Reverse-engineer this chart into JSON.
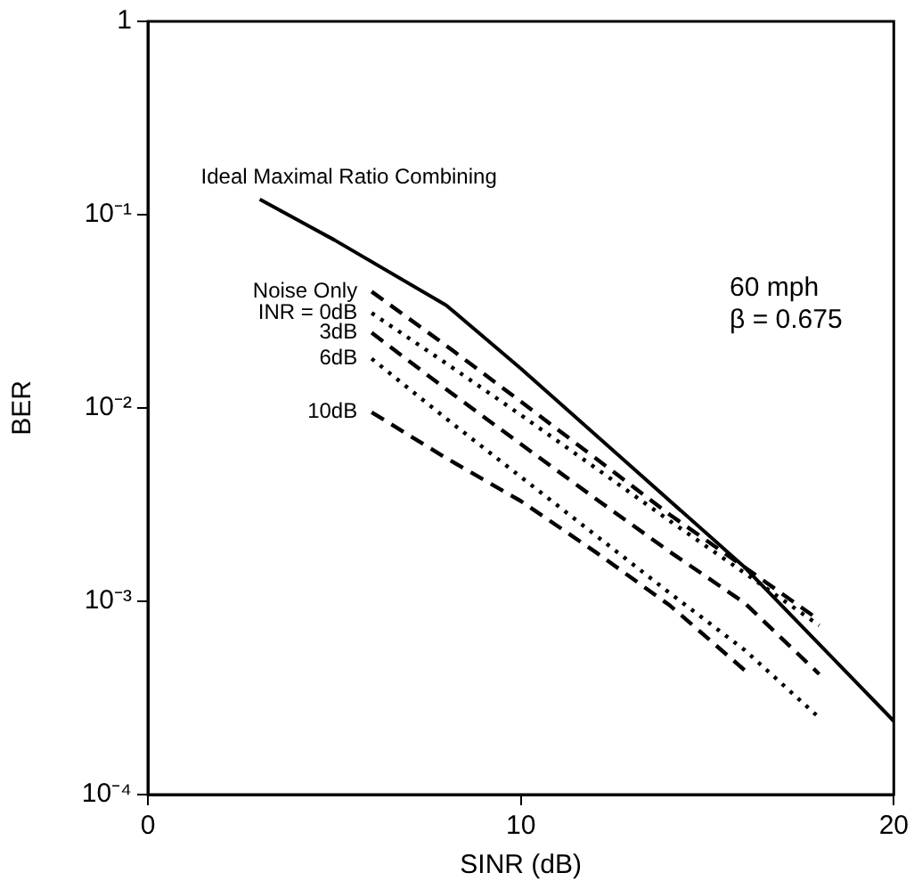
{
  "chart_data": {
    "type": "line",
    "xlabel": "SINR (dB)",
    "ylabel": "BER",
    "log": "y",
    "grid": false,
    "legend": false,
    "marker": "none",
    "xlim": [
      0,
      20
    ],
    "xticks": [
      0,
      10,
      20
    ],
    "ylim": [
      0.0001,
      1
    ],
    "yticks": [
      {
        "value": 0.0001,
        "label": "10⁻⁴"
      },
      {
        "value": 0.001,
        "label": "10⁻³"
      },
      {
        "value": 0.01,
        "label": "10⁻²"
      },
      {
        "value": 0.1,
        "label": "10⁻¹"
      },
      1
    ],
    "annotations": [
      "60 mph",
      "β = 0.675"
    ],
    "series": [
      {
        "name": "Ideal Maximal Ratio Combining",
        "color": "#000000",
        "line_style": "solid",
        "x": [
          3,
          5,
          8,
          10,
          13,
          16,
          20
        ],
        "values": [
          0.12,
          0.074,
          0.034,
          0.016,
          0.0049,
          0.0015,
          0.00024
        ]
      },
      {
        "name": "Noise Only",
        "color": "#000000",
        "line_style": "dashed",
        "x": [
          6,
          8,
          10,
          12,
          14,
          16,
          18
        ],
        "values": [
          0.04,
          0.021,
          0.0108,
          0.0055,
          0.0028,
          0.0015,
          0.0008
        ]
      },
      {
        "name": "INR = 0dB",
        "color": "#000000",
        "line_style": "dotted",
        "x": [
          6,
          8,
          10,
          12,
          14,
          16,
          18
        ],
        "values": [
          0.031,
          0.017,
          0.0092,
          0.0049,
          0.0026,
          0.0014,
          0.00075
        ]
      },
      {
        "name": "3dB",
        "color": "#000000",
        "line_style": "dashed",
        "x": [
          6,
          8,
          10,
          12,
          14,
          16,
          18
        ],
        "values": [
          0.0245,
          0.0125,
          0.0065,
          0.0034,
          0.0018,
          0.00098,
          0.00042
        ]
      },
      {
        "name": "6dB",
        "color": "#000000",
        "line_style": "dotted",
        "x": [
          6,
          8,
          10,
          12,
          14,
          16,
          18
        ],
        "values": [
          0.018,
          0.0088,
          0.0044,
          0.0022,
          0.0011,
          0.00056,
          0.00025
        ]
      },
      {
        "name": "10dB",
        "color": "#000000",
        "line_style": "dashed",
        "x": [
          6,
          8,
          10,
          12,
          14,
          16
        ],
        "values": [
          0.0095,
          0.0055,
          0.0033,
          0.0018,
          0.00095,
          0.00044
        ]
      }
    ]
  }
}
